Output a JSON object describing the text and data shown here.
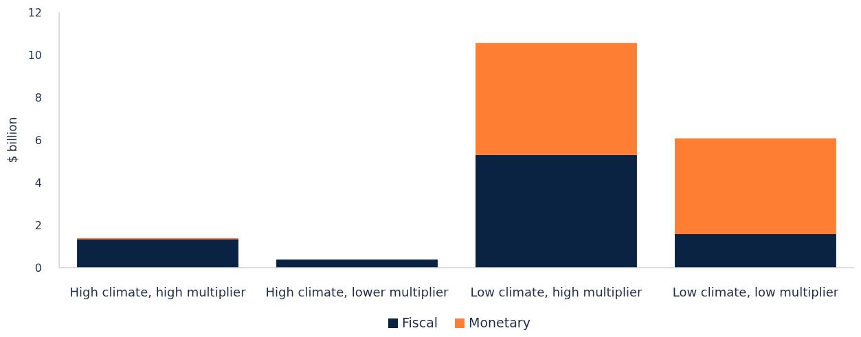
{
  "chart_data": {
    "type": "bar",
    "stacked": true,
    "ylabel": "$ billion",
    "categories": [
      "High climate, high multiplier",
      "High climate, lower multiplier",
      "Low climate, high multiplier",
      "Low climate, low multiplier"
    ],
    "series": [
      {
        "name": "Fiscal",
        "color": "#0a2342",
        "values": [
          1.34,
          0.38,
          5.3,
          1.58
        ]
      },
      {
        "name": "Monetary",
        "color": "#fe7f33",
        "values": [
          0.05,
          0,
          5.26,
          4.5
        ]
      }
    ],
    "ylim": [
      0,
      12
    ],
    "yticks": [
      0,
      2,
      4,
      6,
      8,
      10,
      12
    ],
    "grid": false,
    "legend": "bottom"
  }
}
